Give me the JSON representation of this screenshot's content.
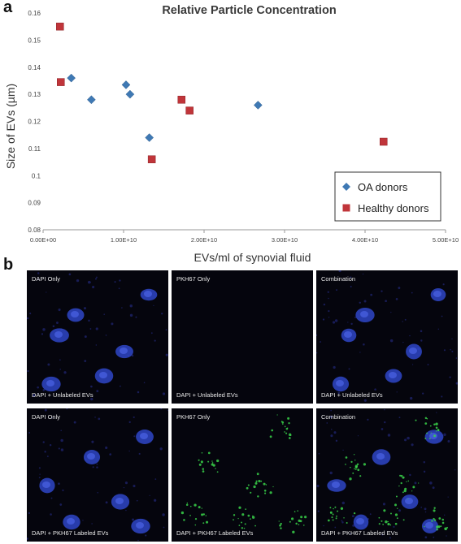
{
  "panels": {
    "a_label": "a",
    "b_label": "b"
  },
  "chart_data": {
    "type": "scatter",
    "title": "Relative Particle Concentration",
    "xlabel": "EVs/ml of synovial fluid",
    "ylabel": "Size of EVs (µm)",
    "xlim": [
      0,
      50000000000.0
    ],
    "ylim": [
      0.08,
      0.16
    ],
    "x_ticks": [
      0,
      10000000000.0,
      20000000000.0,
      30000000000.0,
      40000000000.0,
      50000000000.0
    ],
    "x_tick_labels": [
      "0.00E+00",
      "1.00E+10",
      "2.00E+10",
      "3.00E+10",
      "4.00E+10",
      "5.00E+10"
    ],
    "y_ticks": [
      0.08,
      0.09,
      0.1,
      0.11,
      0.12,
      0.13,
      0.14,
      0.15,
      0.16
    ],
    "y_tick_labels": [
      "0.08",
      "0.09",
      "0.1",
      "0.11",
      "0.12",
      "0.13",
      "0.14",
      "0.15",
      "0.16"
    ],
    "grid": false,
    "legend_position": "bottom-right",
    "series": [
      {
        "name": "OA donors",
        "marker": "diamond",
        "color": "#3f79b4",
        "points": [
          {
            "x": 3500000000.0,
            "y": 0.136
          },
          {
            "x": 6000000000.0,
            "y": 0.128
          },
          {
            "x": 10300000000.0,
            "y": 0.1335
          },
          {
            "x": 10800000000.0,
            "y": 0.13
          },
          {
            "x": 13200000000.0,
            "y": 0.114
          },
          {
            "x": 26700000000.0,
            "y": 0.126
          }
        ]
      },
      {
        "name": "Healthy donors",
        "marker": "square",
        "color": "#c0353a",
        "points": [
          {
            "x": 2100000000.0,
            "y": 0.155
          },
          {
            "x": 2200000000.0,
            "y": 0.1345
          },
          {
            "x": 13500000000.0,
            "y": 0.106
          },
          {
            "x": 17200000000.0,
            "y": 0.128
          },
          {
            "x": 18200000000.0,
            "y": 0.124
          },
          {
            "x": 42300000000.0,
            "y": 0.1125
          }
        ]
      }
    ]
  },
  "microscopy": {
    "tiles": [
      {
        "top_label": "DAPI Only",
        "bottom_label": "DAPI + Unlabeled EVs",
        "channel": "dapi"
      },
      {
        "top_label": "PKH67 Only",
        "bottom_label": "DAPI + Unlabeled EVs",
        "channel": "empty"
      },
      {
        "top_label": "Combination",
        "bottom_label": "DAPI + Unlabeled EVs",
        "channel": "dapi"
      },
      {
        "top_label": "DAPI Only",
        "bottom_label": "DAPI + PKH67 Labeled EVs",
        "channel": "dapi"
      },
      {
        "top_label": "PKH67 Only",
        "bottom_label": "DAPI + PKH67 Labeled EVs",
        "channel": "green"
      },
      {
        "top_label": "Combination",
        "bottom_label": "DAPI + PKH67 Labeled EVs",
        "channel": "both"
      }
    ],
    "colors": {
      "background": "#05050d",
      "nucleus": "#2f46c8",
      "nucleus_core": "#4a63e6",
      "ev_green": "#39d24a",
      "cytoplasm": "#1b1f5e"
    }
  }
}
